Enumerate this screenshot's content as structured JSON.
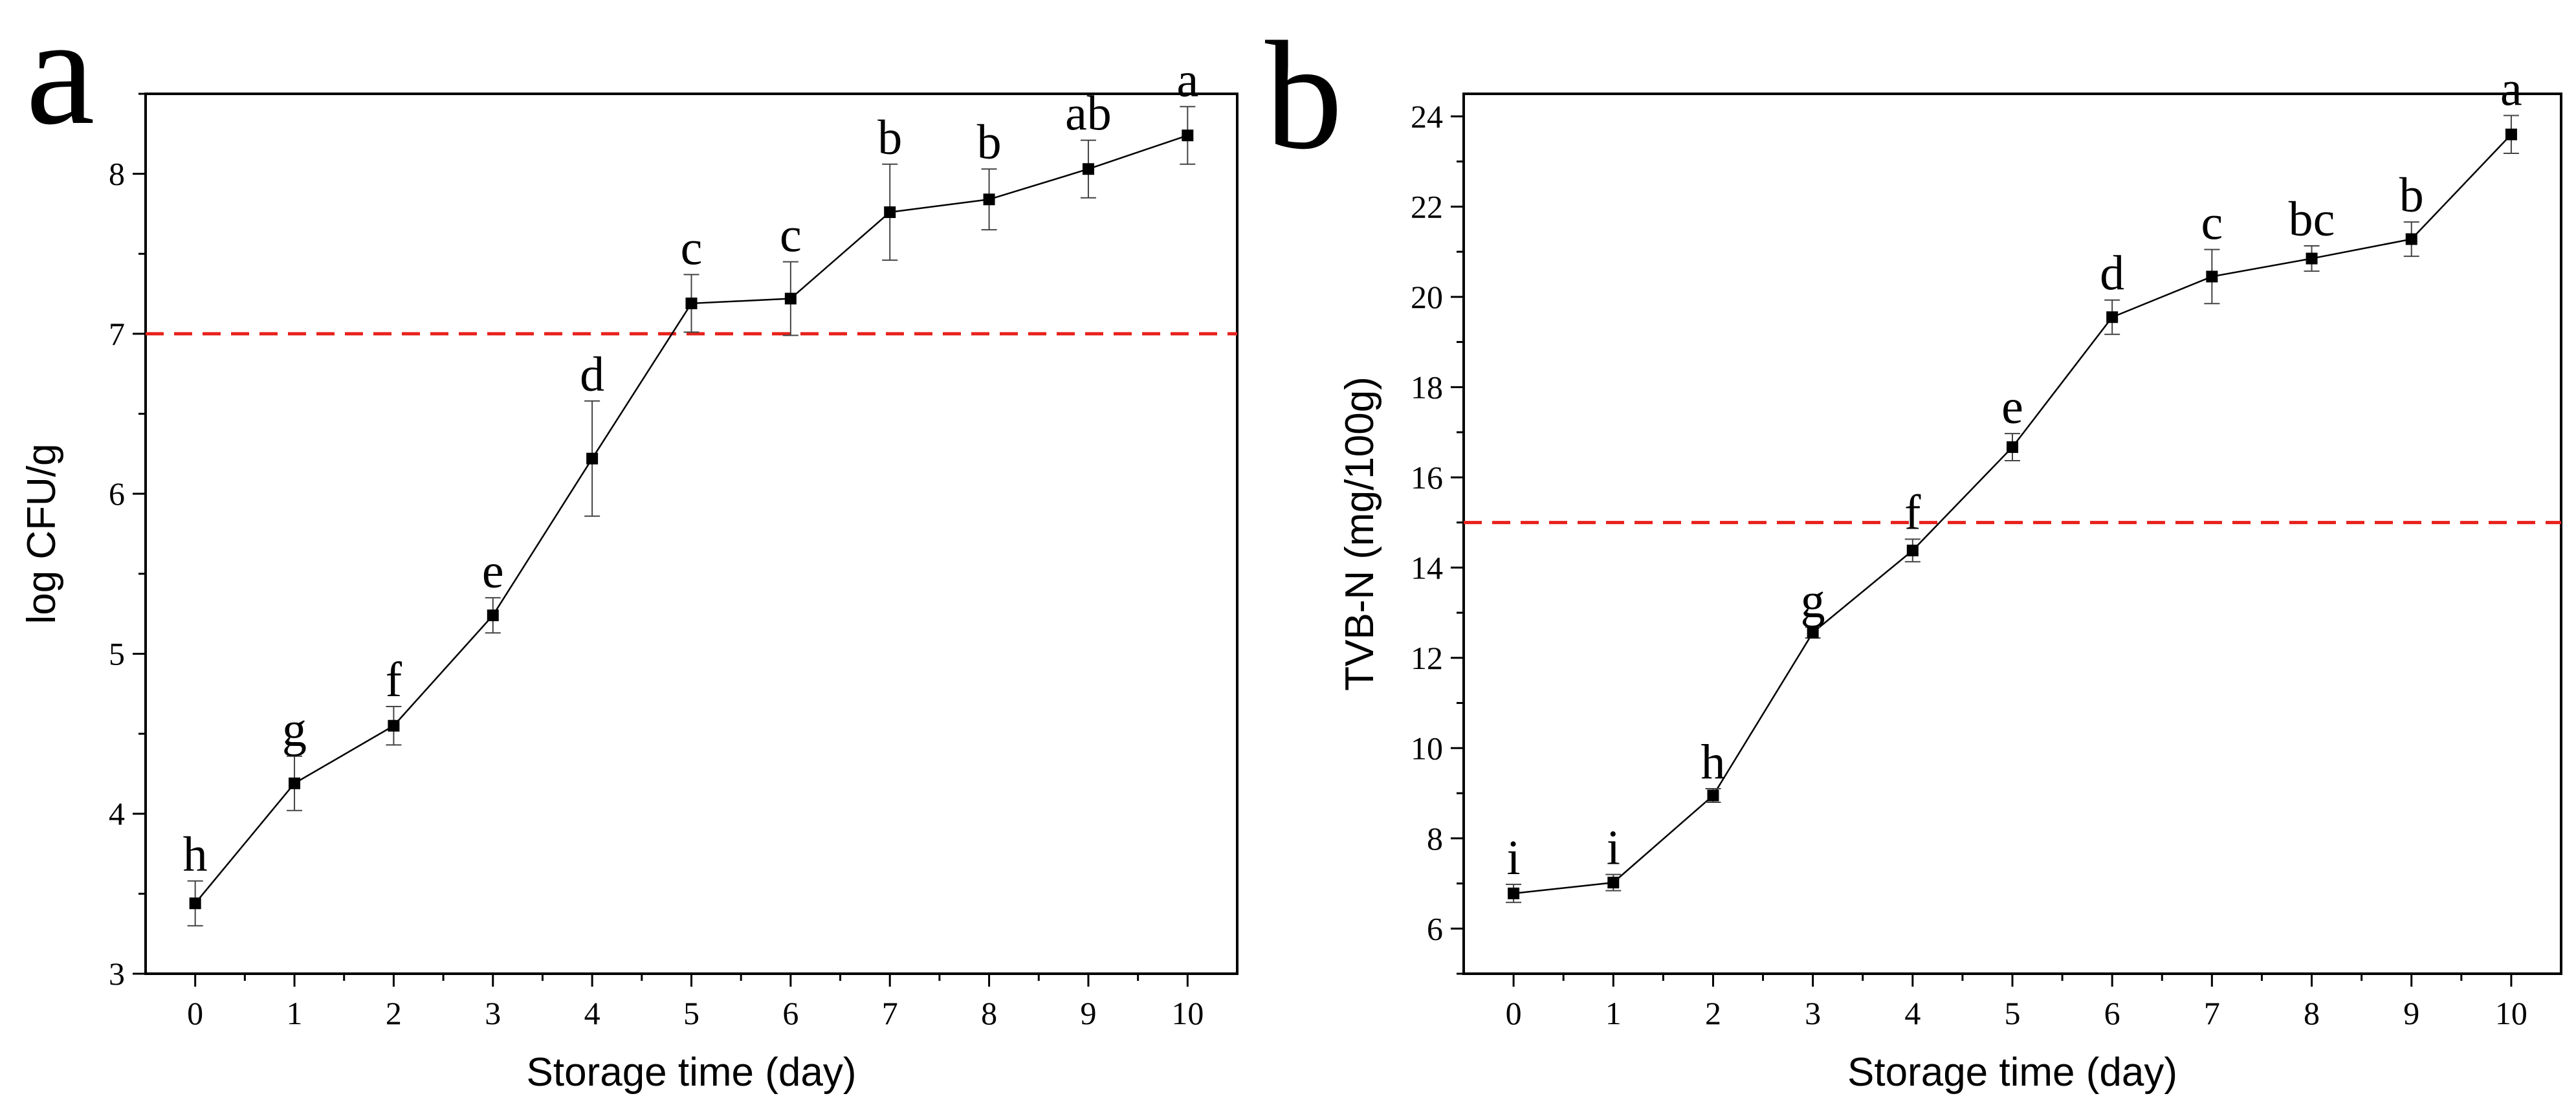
{
  "chart_data": [
    {
      "type": "line",
      "panel_label": "a",
      "xlabel": "Storage time (day)",
      "ylabel": "log CFU/g",
      "xlim": [
        -0.5,
        10.5
      ],
      "ylim": [
        3,
        8.5
      ],
      "xticks": [
        0,
        1,
        2,
        3,
        4,
        5,
        6,
        7,
        8,
        9,
        10
      ],
      "yticks": [
        3,
        4,
        5,
        6,
        7,
        8
      ],
      "x": [
        0,
        1,
        2,
        3,
        4,
        5,
        6,
        7,
        8,
        9,
        10
      ],
      "y": [
        3.44,
        4.19,
        4.55,
        5.24,
        6.22,
        7.19,
        7.22,
        7.76,
        7.84,
        8.03,
        8.24
      ],
      "err": [
        0.14,
        0.17,
        0.12,
        0.11,
        0.36,
        0.18,
        0.23,
        0.3,
        0.19,
        0.18,
        0.18
      ],
      "labels": [
        "h",
        "g",
        "f",
        "e",
        "d",
        "c",
        "c",
        "b",
        "b",
        "ab",
        "a"
      ],
      "threshold": 7,
      "threshold_color": "#e8211b"
    },
    {
      "type": "line",
      "panel_label": "b",
      "xlabel": "Storage time (day)",
      "ylabel": "TVB-N (mg/100g)",
      "xlim": [
        -0.5,
        10.5
      ],
      "ylim": [
        5,
        24.5
      ],
      "xticks": [
        0,
        1,
        2,
        3,
        4,
        5,
        6,
        7,
        8,
        9,
        10
      ],
      "yticks": [
        6,
        8,
        10,
        12,
        14,
        16,
        18,
        20,
        22,
        24
      ],
      "x": [
        0,
        1,
        2,
        3,
        4,
        5,
        6,
        7,
        8,
        9,
        10
      ],
      "y": [
        6.78,
        7.02,
        8.95,
        12.56,
        14.38,
        16.67,
        19.55,
        20.45,
        20.85,
        21.28,
        23.6
      ],
      "err": [
        0.2,
        0.18,
        0.15,
        0.12,
        0.25,
        0.3,
        0.38,
        0.6,
        0.28,
        0.38,
        0.42
      ],
      "labels": [
        "i",
        "i",
        "h",
        "g",
        "f",
        "e",
        "d",
        "c",
        "bc",
        "b",
        "a"
      ],
      "threshold": 15,
      "threshold_color": "#e8211b"
    }
  ]
}
